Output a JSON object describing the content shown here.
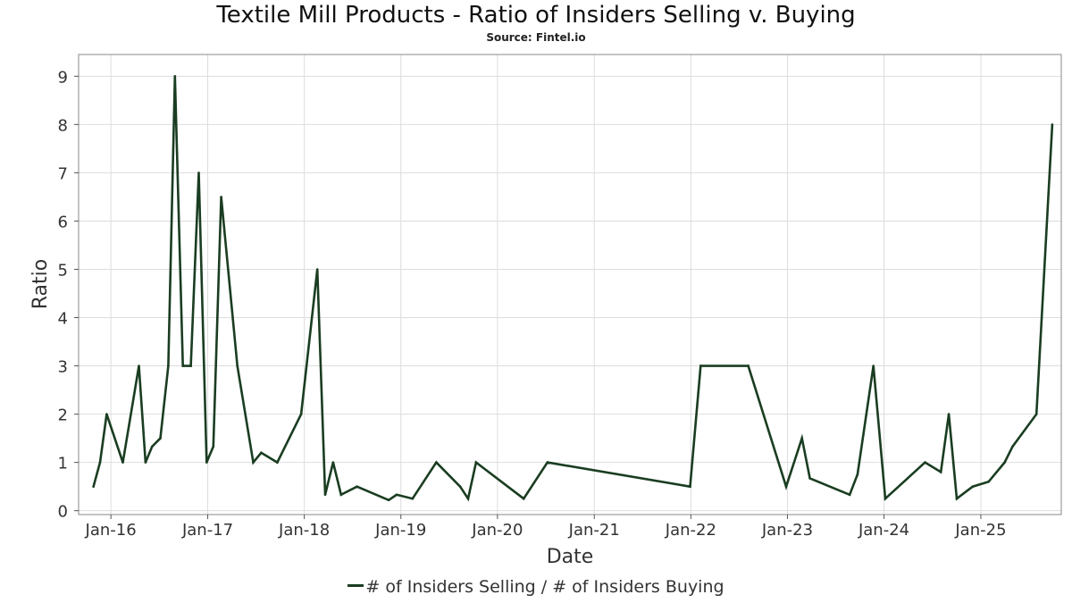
{
  "chart_data": {
    "type": "line",
    "title": "Textile Mill Products - Ratio of Insiders Selling v. Buying",
    "subtitle": "Source: Fintel.io",
    "xlabel": "Date",
    "ylabel": "Ratio",
    "x_tick_labels": [
      "Jan-16",
      "Jan-17",
      "Jan-18",
      "Jan-19",
      "Jan-20",
      "Jan-21",
      "Jan-22",
      "Jan-23",
      "Jan-24",
      "Jan-25"
    ],
    "y_tick_labels": [
      "0",
      "1",
      "2",
      "3",
      "4",
      "5",
      "6",
      "7",
      "8",
      "9"
    ],
    "xlim": [
      "2015-09-01",
      "2025-11-01"
    ],
    "ylim": [
      -0.08,
      9.45
    ],
    "grid": true,
    "legend_position": "bottom-center",
    "colors": {
      "line": "#1a3d21",
      "grid": "#dddddd",
      "frame": "#888888"
    },
    "series": [
      {
        "name": "# of Insiders Selling / # of Insiders Buying",
        "points": [
          [
            "2015-10-27",
            0.5
          ],
          [
            "2015-11-21",
            1.0
          ],
          [
            "2015-12-16",
            2.0
          ],
          [
            "2016-02-15",
            1.0
          ],
          [
            "2016-04-16",
            3.0
          ],
          [
            "2016-05-11",
            1.0
          ],
          [
            "2016-06-05",
            1.33
          ],
          [
            "2016-07-06",
            1.5
          ],
          [
            "2016-08-05",
            3.0
          ],
          [
            "2016-08-30",
            9.0
          ],
          [
            "2016-09-29",
            3.0
          ],
          [
            "2016-10-29",
            3.0
          ],
          [
            "2016-11-28",
            7.0
          ],
          [
            "2016-12-28",
            1.0
          ],
          [
            "2017-01-22",
            1.33
          ],
          [
            "2017-02-21",
            6.5
          ],
          [
            "2017-04-23",
            3.0
          ],
          [
            "2017-06-22",
            1.0
          ],
          [
            "2017-07-22",
            1.2
          ],
          [
            "2017-09-21",
            1.0
          ],
          [
            "2017-12-20",
            2.0
          ],
          [
            "2018-02-19",
            5.0
          ],
          [
            "2018-03-21",
            0.33
          ],
          [
            "2018-04-20",
            1.0
          ],
          [
            "2018-05-20",
            0.33
          ],
          [
            "2018-07-19",
            0.5
          ],
          [
            "2018-11-16",
            0.22
          ],
          [
            "2018-12-16",
            0.33
          ],
          [
            "2019-02-14",
            0.25
          ],
          [
            "2019-05-15",
            1.0
          ],
          [
            "2019-08-13",
            0.5
          ],
          [
            "2019-09-12",
            0.25
          ],
          [
            "2019-10-12",
            1.0
          ],
          [
            "2020-04-09",
            0.25
          ],
          [
            "2020-07-08",
            1.0
          ],
          [
            "2021-12-29",
            0.5
          ],
          [
            "2022-02-07",
            3.0
          ],
          [
            "2022-08-06",
            3.0
          ],
          [
            "2022-12-27",
            0.5
          ],
          [
            "2023-02-25",
            1.5
          ],
          [
            "2023-03-27",
            0.67
          ],
          [
            "2023-08-24",
            0.33
          ],
          [
            "2023-09-23",
            0.75
          ],
          [
            "2023-11-22",
            3.0
          ],
          [
            "2024-01-06",
            0.25
          ],
          [
            "2024-06-04",
            1.0
          ],
          [
            "2024-08-03",
            0.8
          ],
          [
            "2024-09-02",
            2.0
          ],
          [
            "2024-10-02",
            0.25
          ],
          [
            "2024-12-01",
            0.5
          ],
          [
            "2025-01-30",
            0.6
          ],
          [
            "2025-04-01",
            1.0
          ],
          [
            "2025-05-01",
            1.33
          ],
          [
            "2025-07-30",
            2.0
          ],
          [
            "2025-09-28",
            8.0
          ]
        ]
      }
    ]
  }
}
